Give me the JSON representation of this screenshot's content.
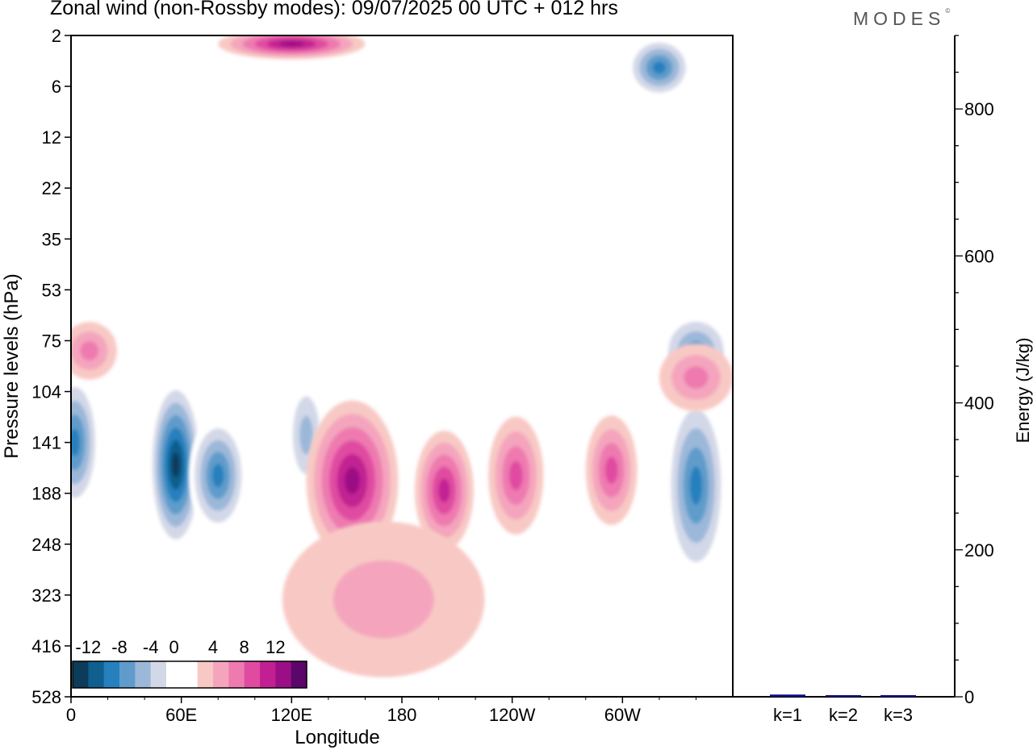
{
  "title": "Zonal wind (non-Rossby modes):  09/07/2025  00 UTC  + 012 hrs",
  "logo": "MODES",
  "chart_data": [
    {
      "type": "heatmap",
      "description_of_field": "zonal wind contours, longitude vs pressure",
      "xlabel": "Longitude",
      "ylabel": "Pressure levels (hPa)",
      "x_ticks": [
        "0",
        "60E",
        "120E",
        "180",
        "120W",
        "60W"
      ],
      "x_tick_degrees": [
        0,
        60,
        120,
        180,
        240,
        300
      ],
      "xlim": [
        0,
        360
      ],
      "y_ticks": [
        "2",
        "6",
        "12",
        "22",
        "35",
        "53",
        "75",
        "104",
        "141",
        "188",
        "248",
        "323",
        "416",
        "528"
      ],
      "colorbar_labels": [
        "-12",
        "-8",
        "-4",
        "0",
        "4",
        "8",
        "12"
      ],
      "colorbar_levels": [
        -14,
        -12,
        -10,
        -8,
        -6,
        -4,
        -2,
        2,
        4,
        6,
        8,
        10,
        12,
        14
      ],
      "colorbar_colors": [
        "#0d3b5a",
        "#0f5f8f",
        "#2580bd",
        "#5f9ccb",
        "#9cb8d9",
        "#d3d8e8",
        "#ffffff",
        "#ffffff",
        "#f8c9c4",
        "#f4a5bd",
        "#ee7ab0",
        "#e04ba1",
        "#c22092",
        "#9b0f86",
        "#5a0769"
      ],
      "negative_features": [
        {
          "lon": 2,
          "lev": 141,
          "lon_w": 28,
          "lev_w": 110,
          "value": -10
        },
        {
          "lon": 57,
          "lev": 160,
          "lon_w": 30,
          "lev_w": 150,
          "value": -14
        },
        {
          "lon": 80,
          "lev": 170,
          "lon_w": 32,
          "lev_w": 110,
          "value": -10
        },
        {
          "lon": 128,
          "lev": 135,
          "lon_w": 22,
          "lev_w": 90,
          "value": -6
        },
        {
          "lon": 340,
          "lev": 180,
          "lon_w": 34,
          "lev_w": 180,
          "value": -10
        },
        {
          "lon": 340,
          "lev": 80,
          "lon_w": 40,
          "lev_w": 40,
          "value": -8
        },
        {
          "lon": 320,
          "lev": 4,
          "lon_w": 36,
          "lev_w": 6,
          "value": -10
        }
      ],
      "positive_features": [
        {
          "lon": 153,
          "lev": 175,
          "lon_w": 50,
          "lev_w": 150,
          "value": 12
        },
        {
          "lon": 203,
          "lev": 185,
          "lon_w": 32,
          "lev_w": 120,
          "value": 10
        },
        {
          "lon": 242,
          "lev": 170,
          "lon_w": 30,
          "lev_w": 110,
          "value": 8
        },
        {
          "lon": 294,
          "lev": 165,
          "lon_w": 28,
          "lev_w": 100,
          "value": 8
        },
        {
          "lon": 170,
          "lev": 330,
          "lon_w": 110,
          "lev_w": 250,
          "value": 4
        },
        {
          "lon": 10,
          "lev": 80,
          "lon_w": 30,
          "lev_w": 30,
          "value": 6
        },
        {
          "lon": 120,
          "lev": 2.4,
          "lon_w": 80,
          "lev_w": 3,
          "value": 12
        },
        {
          "lon": 340,
          "lev": 95,
          "lon_w": 40,
          "lev_w": 40,
          "value": 6
        }
      ]
    },
    {
      "type": "bar",
      "ylabel": "Energy (J/kg)",
      "categories": [
        "k=1",
        "k=2",
        "k=3"
      ],
      "values": [
        3,
        1,
        1
      ],
      "ylim": [
        0,
        900
      ],
      "y_ticks": [
        0,
        200,
        400,
        600,
        800
      ],
      "bar_color": "#0a0a8a"
    }
  ]
}
